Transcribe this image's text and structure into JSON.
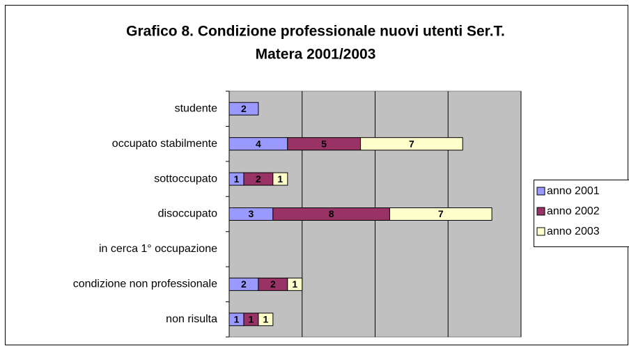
{
  "chart_data": {
    "type": "stacked_barh",
    "title": [
      "Grafico 8. Condizione professionale nuovi utenti Ser.T.",
      "Matera  2001/2003"
    ],
    "categories": [
      "studente",
      "occupato stabilmente",
      "sottoccupato",
      "disoccupato",
      "in cerca 1° occupazione",
      "condizione non professionale",
      "non risulta"
    ],
    "series": [
      {
        "name": "anno 2001",
        "color": "#9999ff",
        "values": [
          2,
          4,
          1,
          3,
          null,
          2,
          1
        ]
      },
      {
        "name": "anno 2002",
        "color": "#993366",
        "values": [
          null,
          5,
          2,
          8,
          null,
          2,
          1
        ]
      },
      {
        "name": "anno 2003",
        "color": "#ffffcc",
        "values": [
          null,
          7,
          1,
          7,
          null,
          1,
          1
        ]
      }
    ],
    "xlim": [
      0,
      20
    ],
    "xticks": [
      0,
      5,
      10,
      15,
      20
    ],
    "grid": true,
    "legend": "right"
  }
}
